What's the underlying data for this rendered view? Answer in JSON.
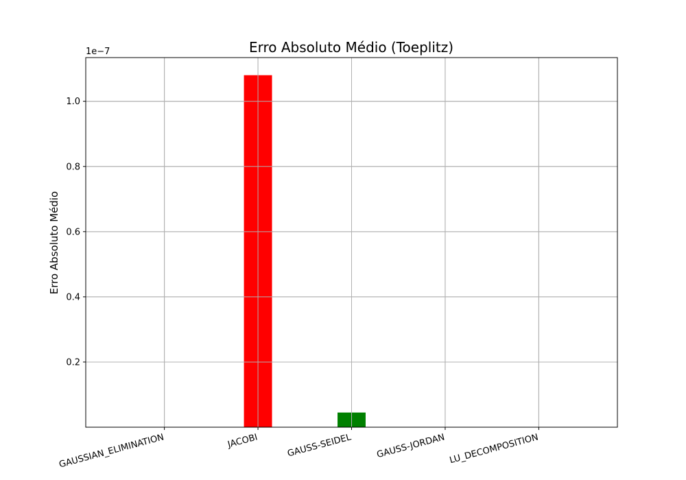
{
  "chart_data": {
    "type": "bar",
    "title": "Erro Absoluto Médio (Toeplitz)",
    "xlabel": "",
    "ylabel": "Erro Absoluto Médio",
    "y_offset_label": "1e−7",
    "y_scale": 1e-07,
    "categories": [
      "GAUSSIAN_ELIMINATION",
      "JACOBI",
      "GAUSS-SEIDEL",
      "GAUSS-JORDAN",
      "LU_DECOMPOSITION"
    ],
    "values": [
      0,
      1.08e-07,
      4.5e-09,
      0,
      0
    ],
    "colors": [
      "#0000ff",
      "#ff0000",
      "#008000",
      "#ffa500",
      "#800080"
    ],
    "ylim": [
      0,
      1.134e-07
    ],
    "yticks": [
      2e-08,
      4e-08,
      6e-08,
      8e-08,
      1e-07
    ],
    "ytick_labels": [
      "0.2",
      "0.4",
      "0.6",
      "0.8",
      "1.0"
    ],
    "grid": true,
    "xtick_rotation": "15 degrees"
  }
}
